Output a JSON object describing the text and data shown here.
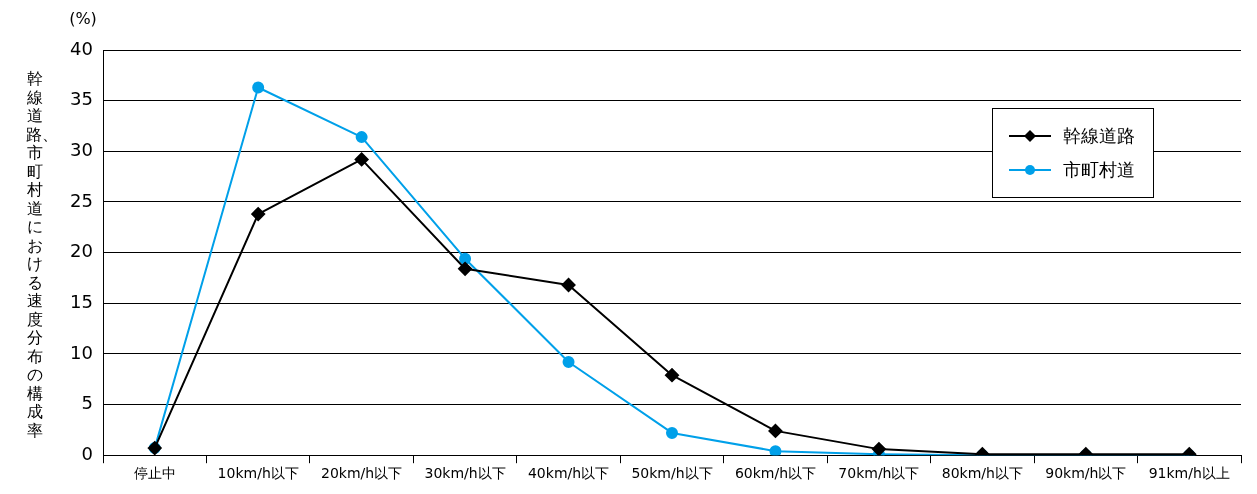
{
  "chart_data": {
    "type": "line",
    "ylabel": "幹線道路、市町村道における速度分布の構成率",
    "annotations": [
      "(%)"
    ],
    "categories": [
      "停止中",
      "10km/h以下",
      "20km/h以下",
      "30km/h以下",
      "40km/h以下",
      "50km/h以下",
      "60km/h以下",
      "70km/h以下",
      "80km/h以下",
      "90km/h以下",
      "91km/h以上"
    ],
    "series": [
      {
        "name": "幹線道路",
        "color": "#000000",
        "marker": "diamond",
        "values": [
          0.7,
          23.8,
          29.2,
          18.4,
          16.8,
          7.9,
          2.4,
          0.6,
          0.1,
          0.1,
          0.1
        ]
      },
      {
        "name": "市町村道",
        "color": "#00a0e9",
        "marker": "circle",
        "values": [
          0.7,
          36.3,
          31.4,
          19.4,
          9.2,
          2.2,
          0.4,
          0.1,
          0,
          0,
          0
        ]
      }
    ],
    "ylim": [
      0,
      40
    ],
    "yticks": [
      0,
      5,
      10,
      15,
      20,
      25,
      30,
      35,
      40
    ],
    "grid": "y",
    "legend": "top right",
    "line_style": "solid"
  }
}
